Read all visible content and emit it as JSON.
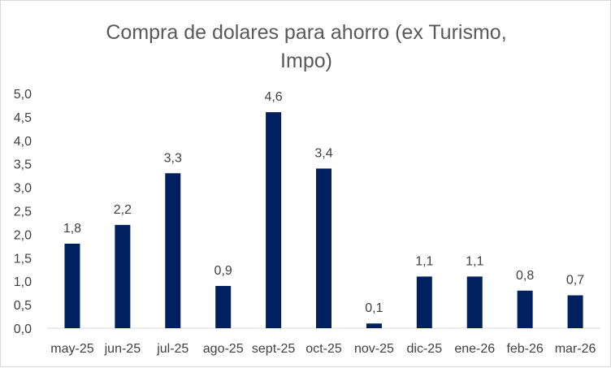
{
  "chart_data": {
    "type": "bar",
    "title_lines": [
      "Compra de dolares para ahorro (ex Turismo,",
      "Impo)"
    ],
    "categories": [
      "may-25",
      "jun-25",
      "jul-25",
      "ago-25",
      "sept-25",
      "oct-25",
      "nov-25",
      "dic-25",
      "ene-26",
      "feb-26",
      "mar-26"
    ],
    "values": [
      1.8,
      2.2,
      3.3,
      0.9,
      4.6,
      3.4,
      0.1,
      1.1,
      1.1,
      0.8,
      0.7
    ],
    "value_labels": [
      "1,8",
      "2,2",
      "3,3",
      "0,9",
      "4,6",
      "3,4",
      "0,1",
      "1,1",
      "1,1",
      "0,8",
      "0,7"
    ],
    "y_ticks": [
      "0,0",
      "0,5",
      "1,0",
      "1,5",
      "2,0",
      "2,5",
      "3,0",
      "3,5",
      "4,0",
      "4,5",
      "5,0"
    ],
    "ylim": [
      0,
      5
    ],
    "grid": false,
    "legend": "none",
    "bar_color": "#002060"
  }
}
